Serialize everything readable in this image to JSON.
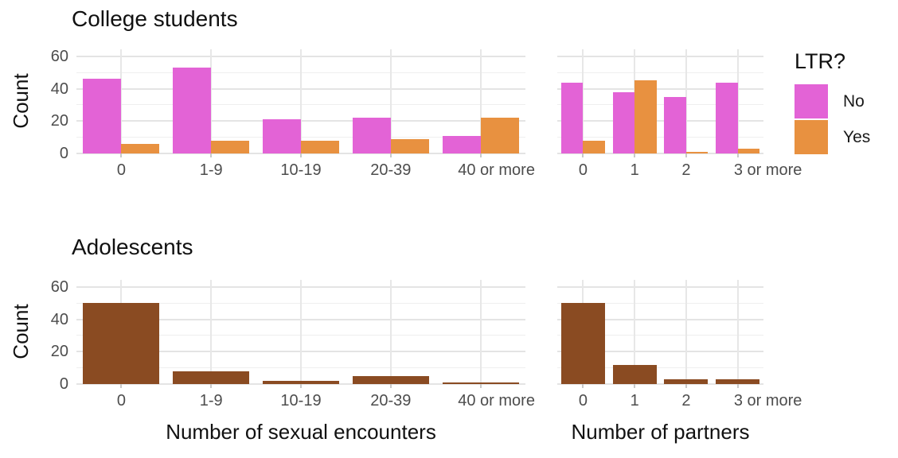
{
  "figure": {
    "legend": {
      "title": "LTR?",
      "items": [
        {
          "label": "No",
          "color": "#E363D6"
        },
        {
          "label": "Yes",
          "color": "#E89140"
        }
      ]
    }
  },
  "chart_data": [
    {
      "type": "bar",
      "panel": "top-left",
      "title": "College students",
      "categories": [
        "0",
        "1-9",
        "10-19",
        "20-39",
        "40 or more"
      ],
      "series": [
        {
          "name": "No",
          "color": "#E363D6",
          "values": [
            46,
            53,
            21,
            22,
            11
          ]
        },
        {
          "name": "Yes",
          "color": "#E89140",
          "values": [
            6,
            8,
            8,
            9,
            22
          ]
        }
      ],
      "xlabel": "",
      "ylabel": "Count",
      "ylim": [
        0,
        60
      ],
      "yticks": [
        0,
        20,
        40,
        60
      ],
      "grid": true,
      "legend_position": "right"
    },
    {
      "type": "bar",
      "panel": "top-right",
      "title": "",
      "categories": [
        "0",
        "1",
        "2",
        "3 or more"
      ],
      "series": [
        {
          "name": "No",
          "color": "#E363D6",
          "values": [
            44,
            38,
            35,
            44
          ]
        },
        {
          "name": "Yes",
          "color": "#E89140",
          "values": [
            8,
            45,
            1,
            3
          ]
        }
      ],
      "xlabel": "",
      "ylabel": "",
      "ylim": [
        0,
        60
      ],
      "yticks": [
        0,
        20,
        40,
        60
      ],
      "grid": true
    },
    {
      "type": "bar",
      "panel": "bottom-left",
      "title": "Adolescents",
      "categories": [
        "0",
        "1-9",
        "10-19",
        "20-39",
        "40 or more"
      ],
      "series": [
        {
          "name": "Adolescents",
          "color": "#8A4B22",
          "values": [
            50,
            8,
            2,
            5,
            1
          ]
        }
      ],
      "xlabel": "Number of sexual encounters",
      "ylabel": "Count",
      "ylim": [
        0,
        60
      ],
      "yticks": [
        0,
        20,
        40,
        60
      ],
      "grid": true
    },
    {
      "type": "bar",
      "panel": "bottom-right",
      "title": "",
      "categories": [
        "0",
        "1",
        "2",
        "3 or more"
      ],
      "series": [
        {
          "name": "Adolescents",
          "color": "#8A4B22",
          "values": [
            50,
            12,
            3,
            3
          ]
        }
      ],
      "xlabel": "Number of partners",
      "ylabel": "",
      "ylim": [
        0,
        60
      ],
      "yticks": [
        0,
        20,
        40,
        60
      ],
      "grid": true
    }
  ]
}
